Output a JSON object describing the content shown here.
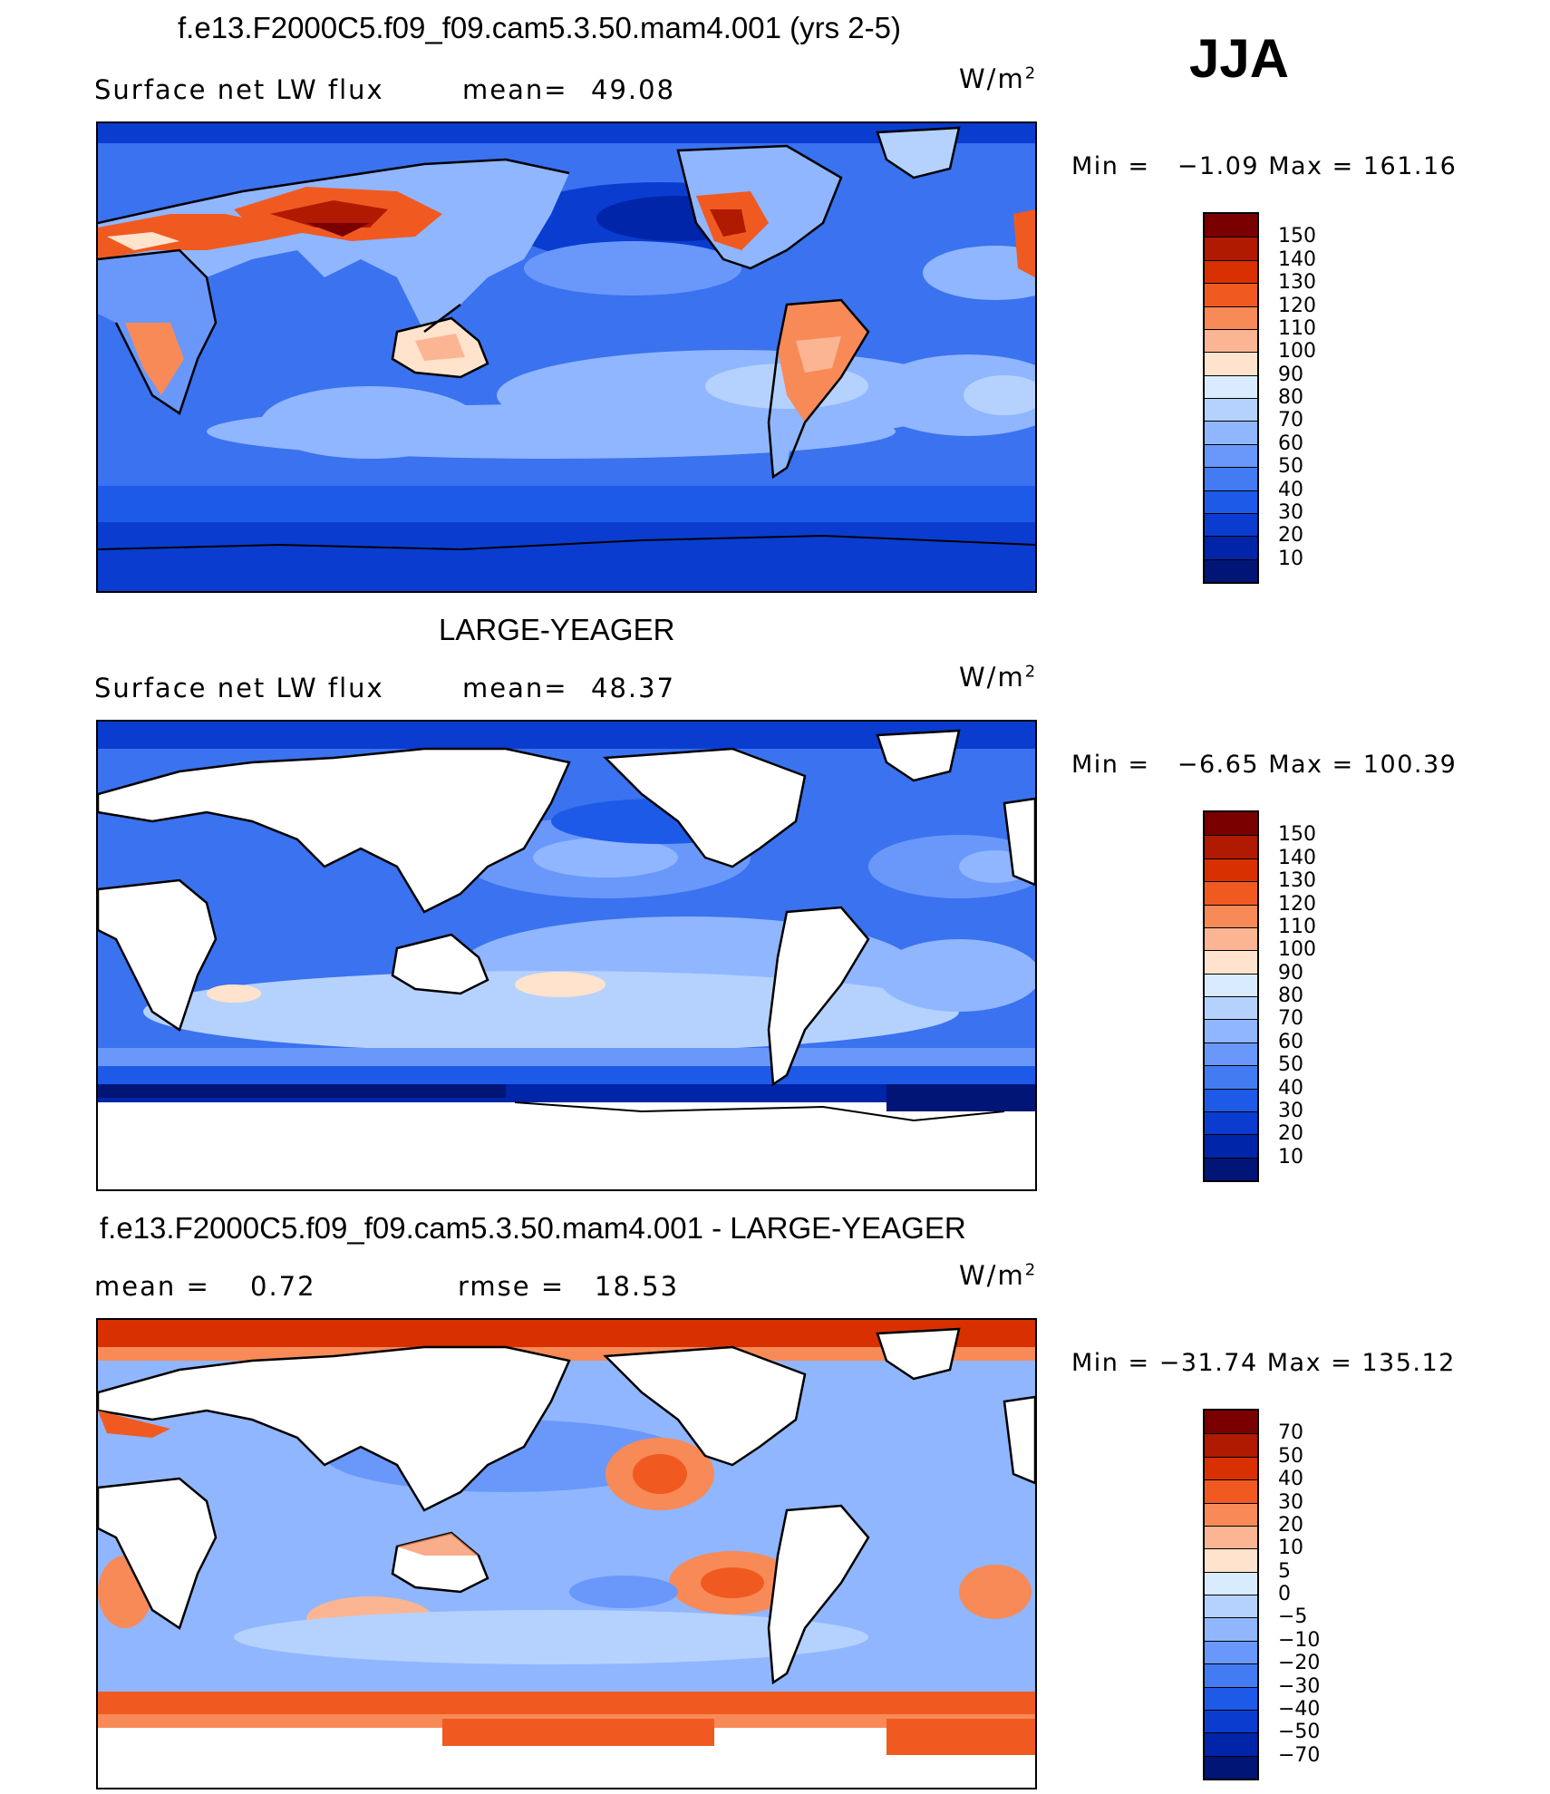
{
  "season": "JJA",
  "panels": [
    {
      "id": "model",
      "title": "f.e13.F2000C5.f09_f09.cam5.3.50.mam4.001 (yrs 2-5)",
      "left_label": "Surface net LW flux",
      "stat1_label": "mean=",
      "stat1_value": "49.08",
      "stat2_label": "",
      "stat2_value": "",
      "units_base": "W/m",
      "units_exp": "2",
      "min_label": "Min =",
      "min_value": "−1.09",
      "max_label": "Max =",
      "max_value": "161.16",
      "colorbar_labels": [
        "150",
        "140",
        "130",
        "120",
        "110",
        "100",
        "90",
        "80",
        "70",
        "60",
        "50",
        "40",
        "30",
        "20",
        "10"
      ],
      "colorbar_colors": [
        "#7a0000",
        "#b01a00",
        "#d83000",
        "#f05a20",
        "#f88a58",
        "#fcb592",
        "#ffe3cc",
        "#d9ecff",
        "#b5d2ff",
        "#90b6ff",
        "#6a98fa",
        "#437bf2",
        "#1e5ae8",
        "#0a3cd0",
        "#0025a8",
        "#001575"
      ]
    },
    {
      "id": "obs",
      "title": "LARGE-YEAGER",
      "left_label": "Surface net LW flux",
      "stat1_label": "mean=",
      "stat1_value": "48.37",
      "stat2_label": "",
      "stat2_value": "",
      "units_base": "W/m",
      "units_exp": "2",
      "min_label": "Min =",
      "min_value": "−6.65",
      "max_label": "Max =",
      "max_value": "100.39",
      "colorbar_labels": [
        "150",
        "140",
        "130",
        "120",
        "110",
        "100",
        "90",
        "80",
        "70",
        "60",
        "50",
        "40",
        "30",
        "20",
        "10"
      ],
      "colorbar_colors": [
        "#7a0000",
        "#b01a00",
        "#d83000",
        "#f05a20",
        "#f88a58",
        "#fcb592",
        "#ffe3cc",
        "#d9ecff",
        "#b5d2ff",
        "#90b6ff",
        "#6a98fa",
        "#437bf2",
        "#1e5ae8",
        "#0a3cd0",
        "#0025a8",
        "#001575"
      ]
    },
    {
      "id": "diff",
      "title": "f.e13.F2000C5.f09_f09.cam5.3.50.mam4.001 - LARGE-YEAGER",
      "left_label": "",
      "stat1_label": "mean =",
      "stat1_value": "0.72",
      "stat2_label": "rmse =",
      "stat2_value": "18.53",
      "units_base": "W/m",
      "units_exp": "2",
      "min_label": "Min =",
      "min_value": "−31.74",
      "max_label": "Max =",
      "max_value": "135.12",
      "colorbar_labels": [
        "70",
        "50",
        "40",
        "30",
        "20",
        "10",
        "5",
        "0",
        "−5",
        "−10",
        "−20",
        "−30",
        "−40",
        "−50",
        "−70"
      ],
      "colorbar_colors": [
        "#7a0000",
        "#b01a00",
        "#d83000",
        "#f05a20",
        "#f88a58",
        "#fcb592",
        "#ffe3cc",
        "#d9ecff",
        "#b5d2ff",
        "#90b6ff",
        "#6a98fa",
        "#437bf2",
        "#1e5ae8",
        "#0a3cd0",
        "#0025a8",
        "#001575"
      ]
    }
  ]
}
